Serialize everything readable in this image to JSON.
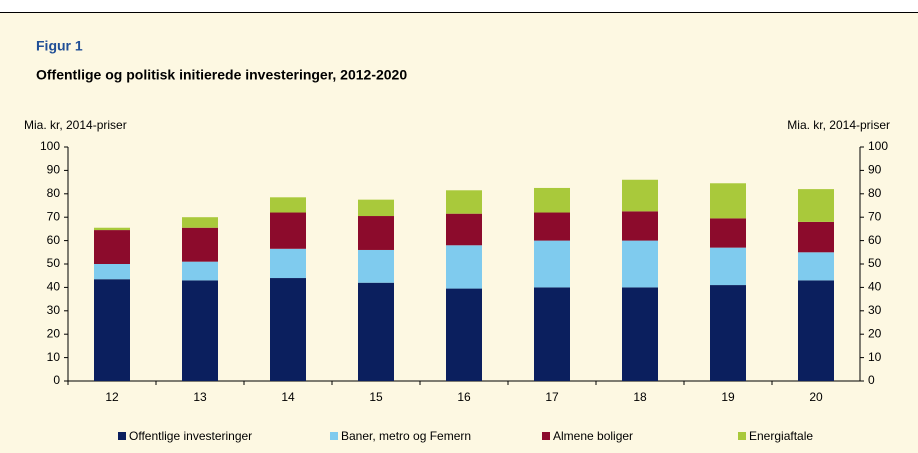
{
  "chart_data": {
    "type": "bar",
    "stacked": true,
    "title": "Figur 1",
    "subtitle": "Offentlige og politisk initierede investeringer, 2012-2020",
    "ylabel": "Mia. kr, 2014-priser",
    "y2label": "Mia. kr, 2014-priser",
    "categories": [
      "12",
      "13",
      "14",
      "15",
      "16",
      "17",
      "18",
      "19",
      "20"
    ],
    "series": [
      {
        "name": "Offentlige investeringer",
        "color": "#0b1f5e",
        "values": [
          43.5,
          43,
          44,
          42,
          39.5,
          40,
          40,
          41,
          43
        ]
      },
      {
        "name": "Baner, metro og Femern",
        "color": "#7fcbee",
        "values": [
          6.5,
          8,
          12.5,
          14,
          18.5,
          20,
          20,
          16,
          12
        ]
      },
      {
        "name": "Almene boliger",
        "color": "#8c0b2c",
        "values": [
          14.5,
          14.5,
          15.5,
          14.5,
          13.5,
          12,
          12.5,
          12.5,
          13
        ]
      },
      {
        "name": "Energiaftale",
        "color": "#a9c93b",
        "values": [
          1,
          4.5,
          6.5,
          7,
          10,
          10.5,
          13.5,
          15,
          14
        ]
      }
    ],
    "ylim": [
      0,
      100
    ],
    "yticks": [
      0,
      10,
      20,
      30,
      40,
      50,
      60,
      70,
      80,
      90,
      100
    ],
    "y2lim": [
      0,
      100
    ],
    "y2ticks": [
      0,
      10,
      20,
      30,
      40,
      50,
      60,
      70,
      80,
      90,
      100
    ],
    "legend": "bottom"
  }
}
